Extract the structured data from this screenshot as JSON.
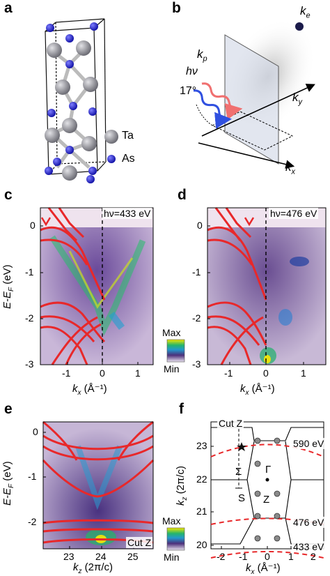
{
  "panel_labels": {
    "a": "a",
    "b": "b",
    "c": "c",
    "d": "d",
    "e": "e",
    "f": "f"
  },
  "panel_a": {
    "legend": [
      {
        "label": "Ta",
        "color": "#8f8f96"
      },
      {
        "label": "As",
        "color": "#2a2ad0"
      }
    ]
  },
  "panel_b": {
    "labels": {
      "ke": "k",
      "ke_sub": "e",
      "kp": "k",
      "kp_sub": "p",
      "hv": "hν",
      "angle": "17°",
      "ky": "k",
      "ky_sub": "y",
      "kx": "k",
      "kx_sub": "x"
    }
  },
  "panel_c": {
    "hv_label": "hν=433 eV",
    "ylabel": "E-E",
    "ylabel_sub": "F",
    "ylabel_unit": " (eV)",
    "xlabel": "k",
    "xlabel_sub": "x",
    "xlabel_unit": " (Å⁻¹)",
    "yticks": [
      "0",
      "-1",
      "-2",
      "-3"
    ],
    "xticks": [
      "-1",
      "0",
      "1"
    ],
    "colorbar": {
      "max": "Max",
      "min": "Min"
    }
  },
  "panel_d": {
    "hv_label": "hν=476 eV",
    "xlabel": "k",
    "xlabel_sub": "x",
    "xlabel_unit": " (Å⁻¹)",
    "yticks": [
      "0",
      "-1",
      "-2",
      "-3"
    ],
    "xticks": [
      "-1",
      "0",
      "1"
    ]
  },
  "panel_e": {
    "ylabel": "E-E",
    "ylabel_sub": "F",
    "ylabel_unit": " (eV)",
    "xlabel": "k",
    "xlabel_sub": "z",
    "xlabel_unit": " (2π/c)",
    "yticks": [
      "0",
      "-1",
      "-2"
    ],
    "xticks": [
      "23",
      "24",
      "25"
    ],
    "cut_label": "Cut Z",
    "colorbar": {
      "max": "Max",
      "min": "Min"
    }
  },
  "panel_f": {
    "ylabel": "k",
    "ylabel_sub": "z",
    "ylabel_unit": " (2π/c)",
    "xlabel": "k",
    "xlabel_sub": "x",
    "xlabel_unit": " (Å⁻¹)",
    "yticks": [
      "20",
      "21",
      "22",
      "23"
    ],
    "xticks": [
      "-2",
      "-1",
      "0",
      "1",
      "2"
    ],
    "cut_label": "Cut Z",
    "energy_labels": [
      "590 eV",
      "476 eV",
      "433 eV"
    ],
    "points": {
      "sigma": "Σ",
      "gamma": "Γ",
      "s": "S",
      "z": "Z"
    }
  },
  "colors": {
    "dft_bands": "#e8282a",
    "arpes_bg": "#5b3f86",
    "hv_circle": "#e8282a"
  }
}
